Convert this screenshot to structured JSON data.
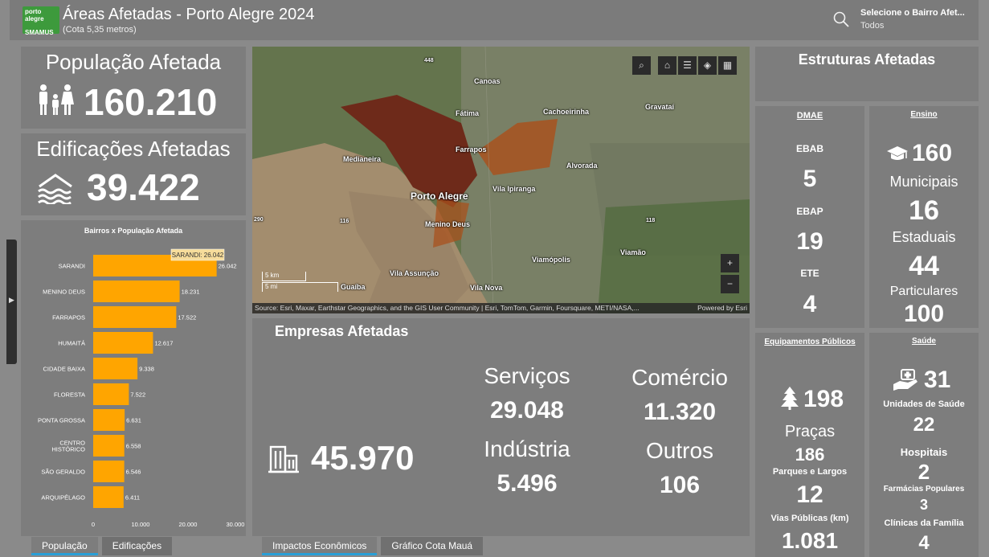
{
  "header": {
    "logo_text": "porto alegre",
    "logo_sub": "SMAMUS",
    "title": "Áreas Afetadas - Porto Alegre 2024",
    "subtitle": "(Cota 5,35 metros)",
    "search_label": "Selecione o Bairro Afet...",
    "search_value": "Todos"
  },
  "populacao": {
    "label": "População Afetada",
    "value": "160.210"
  },
  "edificacoes": {
    "label": "Edificações Afetadas",
    "value": "39.422"
  },
  "chart_data": {
    "type": "bar",
    "orientation": "horizontal",
    "title": "Bairros x População Afetada",
    "categories": [
      "SARANDI",
      "MENINO DEUS",
      "FARRAPOS",
      "HUMAITÁ",
      "CIDADE BAIXA",
      "FLORESTA",
      "PONTA GROSSA",
      "CENTRO HISTÓRICO",
      "SÃO GERALDO",
      "ARQUIPÉLAGO"
    ],
    "values": [
      26042,
      18231,
      17522,
      12617,
      9338,
      7522,
      6631,
      6558,
      6546,
      6411
    ],
    "value_labels": [
      "26.042",
      "18.231",
      "17.522",
      "12.617",
      "9.338",
      "7.522",
      "6.631",
      "6.558",
      "6.546",
      "6.411"
    ],
    "xticks": [
      "0",
      "10.000",
      "20.000",
      "30.000"
    ],
    "xlim": [
      0,
      30000
    ],
    "color": "#ffa500",
    "tooltip": "SARANDI: 26.042"
  },
  "left_tabs": [
    "População",
    "Edificações"
  ],
  "center_tabs": [
    "Impactos Econômicos",
    "Gráfico Cota Mauá"
  ],
  "map": {
    "labels": [
      "Canoas",
      "Fátima",
      "Cachoeirinha",
      "Gravataí",
      "Medianeira",
      "Farrapos",
      "Alvorada",
      "Porto Alegre",
      "Vila Ipiranga",
      "Menino Deus",
      "Viamão",
      "Viamópolis",
      "Vila Assunção",
      "Guaíba",
      "Vila Nova"
    ],
    "road_labels": [
      "448",
      "290",
      "116",
      "118"
    ],
    "scale_km": "5 km",
    "scale_mi": "5 mi",
    "attribution": "Source: Esri, Maxar, Earthstar Geographics, and the GIS User Community | Esri, TomTom, Garmin, Foursquare, METI/NASA,...",
    "powered": "Powered by Esri",
    "zoom_in": "+",
    "zoom_out": "−"
  },
  "empresas": {
    "title": "Empresas Afetadas",
    "total": "45.970",
    "servicos_label": "Serviços",
    "servicos": "29.048",
    "comercio_label": "Comércio",
    "comercio": "11.320",
    "industria_label": "Indústria",
    "industria": "5.496",
    "outros_label": "Outros",
    "outros": "106"
  },
  "estruturas": {
    "title": "Estruturas Afetadas"
  },
  "dmae": {
    "title": "DMAE",
    "ebab_label": "EBAB",
    "ebab": "5",
    "ebap_label": "EBAP",
    "ebap": "19",
    "ete_label": "ETE",
    "ete": "4"
  },
  "ensino": {
    "title": "Ensino",
    "total": "160",
    "municipais_label": "Municipais",
    "municipais": "16",
    "estaduais_label": "Estaduais",
    "estaduais": "44",
    "particulares_label": "Particulares",
    "particulares": "100"
  },
  "equipamentos": {
    "title": "Equipamentos Públicos",
    "total": "198",
    "pracas_label": "Praças",
    "pracas": "186",
    "parques_label": "Parques e Largos",
    "parques": "12",
    "vias_label": "Vias Públicas (km)",
    "vias": "1.081"
  },
  "saude": {
    "title": "Saúde",
    "total": "31",
    "unidades_label": "Unidades de Saúde",
    "unidades": "22",
    "hospitais_label": "Hospitais",
    "hospitais": "2",
    "farmacias_label": "Farmácias Populares",
    "farmacias": "3",
    "clinicas_label": "Clínicas da Família",
    "clinicas": "4"
  }
}
